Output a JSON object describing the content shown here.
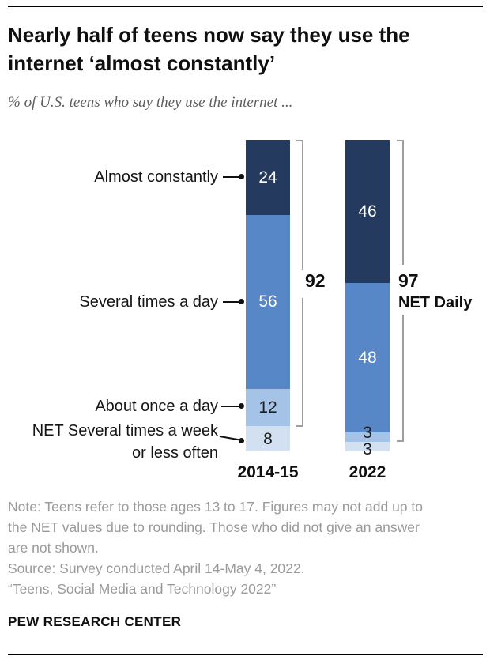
{
  "header": {
    "title": "Nearly half of teens now say they use the internet ‘almost constantly’",
    "subtitle": "% of U.S. teens who say they use the internet ..."
  },
  "chart_data": {
    "type": "bar",
    "subtype": "stacked-vertical",
    "unit": "%",
    "categories": [
      "2014-15",
      "2022"
    ],
    "segment_labels": [
      "Almost constantly",
      "Several times a day",
      "About once a day",
      "NET Several times a week or less often"
    ],
    "series": [
      {
        "category": "2014-15",
        "values": [
          24,
          56,
          12,
          8
        ],
        "net_daily": 92
      },
      {
        "category": "2022",
        "values": [
          46,
          48,
          3,
          3
        ],
        "net_daily": 97
      }
    ],
    "segment_colors": [
      "#243a5e",
      "#5787c7",
      "#a5c3e6",
      "#d2e0f2"
    ],
    "net_label": "NET Daily",
    "axis": {
      "ymin": 0,
      "ymax": 100,
      "grid": false,
      "legend": "leader-line labels left of first bar"
    }
  },
  "labels": {
    "almost_constantly": "Almost constantly",
    "several_times_day": "Several times a day",
    "about_once_day": "About once a day",
    "net_week_line1": "NET Several times a week",
    "net_week_line2": "or less often"
  },
  "footer": {
    "note_lines": [
      "Note: Teens refer to those ages 13 to 17. Figures may not add up to",
      "the NET values due to rounding. Those who did not give an answer",
      "are not shown.",
      "Source: Survey conducted April 14-May 4, 2022.",
      "“Teens, Social Media and Technology 2022”"
    ],
    "brand": "PEW RESEARCH CENTER"
  }
}
